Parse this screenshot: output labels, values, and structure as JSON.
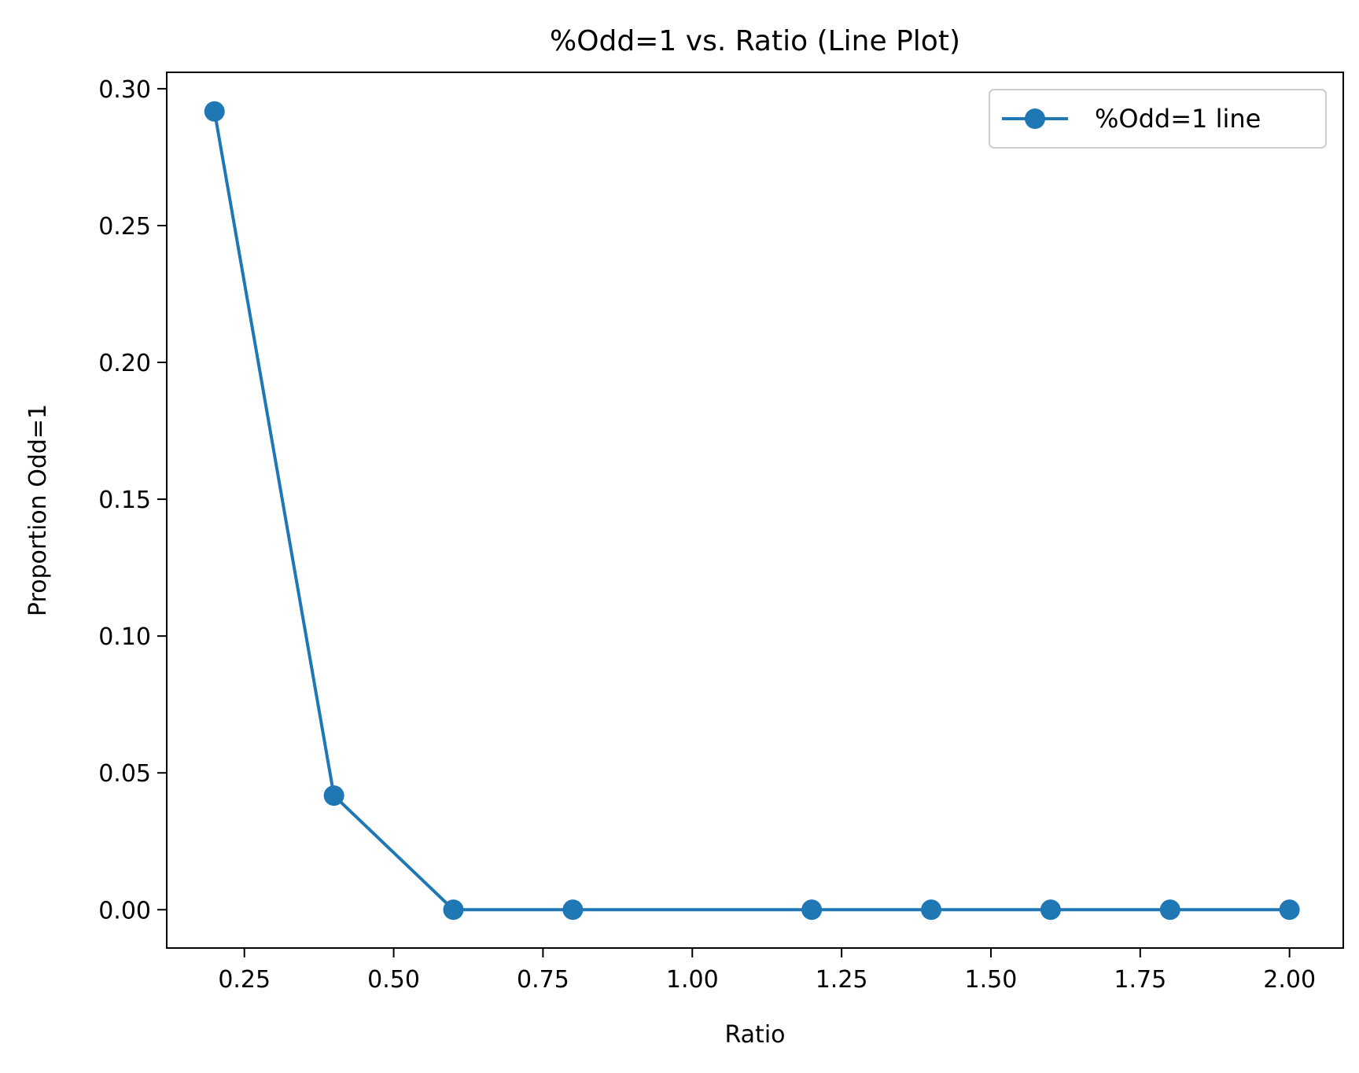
{
  "chart_data": {
    "type": "line",
    "title": "%Odd=1 vs. Ratio (Line Plot)",
    "xlabel": "Ratio",
    "ylabel": "Proportion Odd=1",
    "xlim": [
      0.12,
      2.09
    ],
    "ylim": [
      -0.014,
      0.306
    ],
    "xticks": [
      0.25,
      0.5,
      0.75,
      1.0,
      1.25,
      1.5,
      1.75,
      2.0
    ],
    "xtick_labels": [
      "0.25",
      "0.50",
      "0.75",
      "1.00",
      "1.25",
      "1.50",
      "1.75",
      "2.00"
    ],
    "yticks": [
      0.0,
      0.05,
      0.1,
      0.15,
      0.2,
      0.25,
      0.3
    ],
    "ytick_labels": [
      "0.00",
      "0.05",
      "0.10",
      "0.15",
      "0.20",
      "0.25",
      "0.30"
    ],
    "grid": false,
    "legend_position": "top-right",
    "series": [
      {
        "name": "%Odd=1 line",
        "color": "#1f77b4",
        "marker": "circle",
        "x": [
          0.2,
          0.4,
          0.6,
          0.8,
          1.2,
          1.4,
          1.6,
          1.8,
          2.0
        ],
        "y": [
          0.2917,
          0.0417,
          0.0,
          0.0,
          0.0,
          0.0,
          0.0,
          0.0,
          0.0
        ]
      }
    ]
  }
}
